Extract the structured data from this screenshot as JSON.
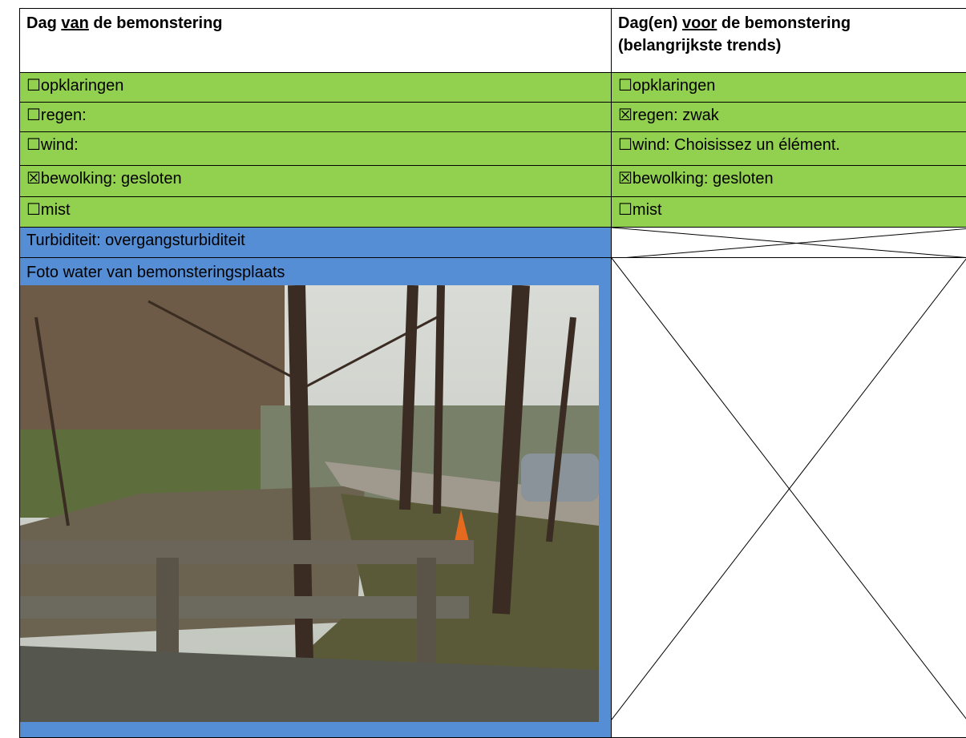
{
  "table": {
    "header": [
      {
        "parts": [
          "Dag ",
          "van",
          " de bemonstering"
        ]
      },
      {
        "parts": [
          "Dag(en) ",
          "voor",
          " de bemonstering"
        ],
        "line2": "(belangrijkste trends)"
      }
    ],
    "rows": [
      [
        "☐opklaringen",
        "☐opklaringen"
      ],
      [
        "☐regen:",
        "☒regen: zwak"
      ],
      [
        "☐wind:",
        "☐wind: Choisissez un élément."
      ],
      [
        "☒bewolking: gesloten",
        "☒bewolking: gesloten"
      ],
      [
        "☐mist",
        "☐mist"
      ]
    ],
    "turbidity": "Turbiditeit: overgangsturbiditeit",
    "photo_caption": "Foto water van bemonsteringsplaats"
  }
}
